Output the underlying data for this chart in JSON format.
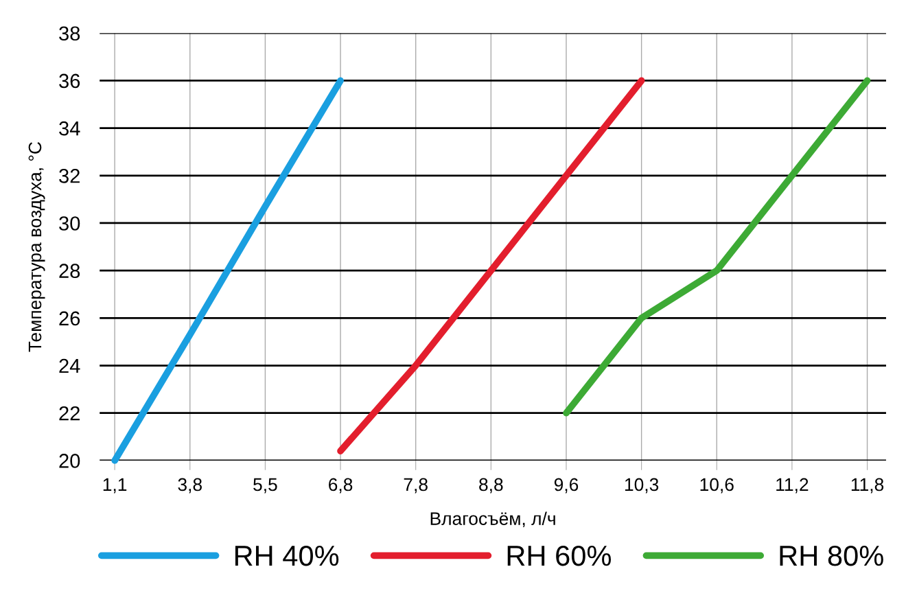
{
  "chart_data": {
    "type": "line",
    "xlabel": "Влагосъём, л/ч",
    "ylabel": "Температура воздуха, °C",
    "categories": [
      "1,1",
      "3,8",
      "5,5",
      "6,8",
      "7,8",
      "8,8",
      "9,6",
      "10,3",
      "10,6",
      "11,2",
      "11,8"
    ],
    "series": [
      {
        "name": "RH 40%",
        "color": "#1a9fe0",
        "values": [
          20,
          25.3,
          30.7,
          36,
          null,
          null,
          null,
          null,
          null,
          null,
          null
        ]
      },
      {
        "name": "RH 60%",
        "color": "#e31e2d",
        "values": [
          null,
          null,
          null,
          20.4,
          24,
          28,
          32,
          36,
          null,
          null,
          null
        ]
      },
      {
        "name": "RH 80%",
        "color": "#3daa35",
        "values": [
          null,
          null,
          null,
          null,
          null,
          null,
          22,
          26,
          28,
          32,
          36
        ]
      }
    ],
    "ylim": [
      20,
      38
    ],
    "yticks": [
      20,
      22,
      24,
      26,
      28,
      30,
      32,
      34,
      36,
      38
    ],
    "grid": true,
    "legend": "bottom",
    "marker": "none",
    "line_style": "solid"
  }
}
